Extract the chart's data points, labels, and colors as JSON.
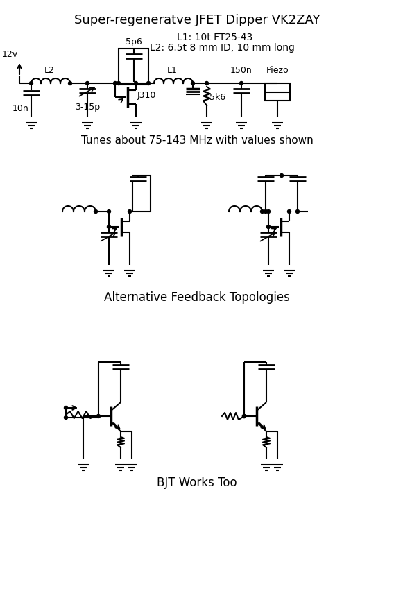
{
  "title": "Super-regeneratve JFET Dipper VK2ZAY",
  "subtitle1": "L1: 10t FT25-43",
  "subtitle2": "L2: 6.5t 8 mm ID, 10 mm long",
  "caption1": "Tunes about 75-143 MHz with values shown",
  "caption2": "Alternative Feedback Topologies",
  "caption3": "BJT Works Too",
  "bg_color": "#ffffff"
}
